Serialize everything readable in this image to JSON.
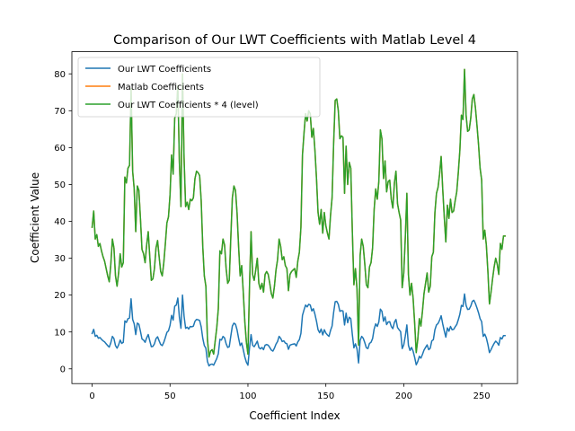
{
  "chart_data": {
    "type": "line",
    "title": "Comparison of Our LWT Coefficients with Matlab Level 4",
    "xlabel": "Coefficient Index",
    "ylabel": "Coefficient Value",
    "xlim": [
      -13,
      273
    ],
    "ylim": [
      -4,
      86
    ],
    "xticks": [
      0,
      50,
      100,
      150,
      200,
      250
    ],
    "yticks": [
      0,
      10,
      20,
      30,
      40,
      50,
      60,
      70,
      80
    ],
    "grid": false,
    "legend_position": "top-left",
    "series": [
      {
        "name": "Our LWT Coefficients",
        "color": "#1f77b4",
        "values": [
          9.6,
          10.7,
          8.8,
          9.1,
          8.3,
          8.5,
          8.0,
          7.6,
          7.3,
          6.8,
          6.3,
          5.9,
          7.1,
          8.8,
          8.2,
          6.3,
          5.6,
          6.5,
          7.8,
          6.9,
          7.2,
          13.0,
          12.6,
          13.6,
          13.8,
          19.0,
          13.4,
          12.2,
          9.3,
          12.4,
          12.1,
          10.2,
          8.1,
          7.8,
          7.2,
          8.4,
          9.3,
          7.6,
          6.0,
          6.1,
          6.8,
          8.2,
          8.7,
          7.6,
          6.6,
          6.3,
          7.2,
          8.5,
          9.9,
          10.3,
          11.8,
          14.5,
          13.2,
          17.0,
          17.3,
          19.2,
          14.0,
          11.0,
          20.0,
          14.3,
          11.0,
          11.3,
          10.8,
          11.5,
          11.4,
          11.6,
          12.9,
          13.4,
          13.3,
          13.1,
          11.4,
          8.3,
          6.3,
          5.6,
          2.0,
          0.8,
          1.2,
          1.3,
          1.0,
          1.9,
          2.8,
          4.1,
          8.0,
          7.8,
          8.8,
          8.4,
          6.8,
          5.8,
          6.0,
          8.9,
          11.6,
          12.4,
          12.1,
          10.6,
          8.3,
          6.3,
          7.0,
          5.2,
          3.2,
          1.8,
          1.0,
          5.6,
          9.3,
          6.4,
          6.0,
          6.7,
          7.5,
          5.8,
          5.4,
          5.8,
          5.2,
          6.4,
          6.6,
          6.4,
          5.8,
          5.1,
          4.8,
          5.6,
          6.7,
          7.4,
          8.8,
          8.3,
          7.4,
          7.6,
          7.0,
          6.8,
          5.3,
          6.4,
          6.6,
          6.7,
          6.8,
          6.2,
          7.3,
          7.9,
          9.6,
          14.5,
          16.0,
          17.3,
          16.8,
          17.5,
          17.3,
          15.7,
          16.3,
          14.8,
          12.9,
          10.6,
          9.8,
          10.8,
          9.2,
          10.6,
          9.7,
          9.2,
          8.8,
          10.4,
          11.6,
          15.3,
          18.2,
          18.3,
          17.5,
          15.6,
          15.8,
          15.7,
          11.9,
          15.1,
          12.5,
          14.0,
          13.6,
          9.3,
          5.7,
          6.8,
          5.4,
          1.6,
          7.7,
          8.8,
          8.3,
          7.1,
          5.7,
          5.5,
          6.9,
          7.2,
          8.2,
          10.8,
          12.2,
          11.5,
          12.7,
          16.2,
          15.6,
          12.9,
          14.1,
          12.0,
          12.7,
          12.8,
          11.5,
          10.9,
          12.6,
          13.4,
          11.2,
          10.6,
          10.1,
          5.5,
          6.5,
          8.9,
          11.9,
          6.4,
          5.0,
          5.8,
          4.8,
          3.1,
          1.1,
          2.0,
          3.4,
          2.9,
          3.9,
          5.1,
          5.8,
          6.5,
          5.2,
          5.6,
          7.6,
          7.9,
          10.6,
          11.9,
          12.3,
          13.2,
          14.4,
          12.2,
          10.3,
          8.6,
          11.1,
          10.2,
          11.5,
          10.6,
          10.7,
          11.4,
          12.0,
          13.3,
          14.8,
          17.2,
          16.9,
          20.3,
          17.2,
          16.1,
          16.2,
          17.0,
          18.3,
          18.6,
          17.7,
          16.5,
          15.2,
          13.6,
          12.8,
          8.8,
          9.4,
          8.4,
          6.6,
          4.4,
          5.2,
          6.1,
          6.9,
          7.5,
          7.1,
          6.4,
          8.5,
          8.1,
          9.0,
          9.0
        ],
        "line_width": 1.5
      },
      {
        "name": "Matlab Coefficients",
        "color": "#ff7f0e",
        "values": [
          38.4,
          42.8,
          35.2,
          36.4,
          33.2,
          34.0,
          32.0,
          30.4,
          29.2,
          27.2,
          25.2,
          23.6,
          28.4,
          35.2,
          32.8,
          25.2,
          22.4,
          26.0,
          31.2,
          27.6,
          28.8,
          52.0,
          50.4,
          54.4,
          55.2,
          76.0,
          53.6,
          48.8,
          37.2,
          49.6,
          48.4,
          40.8,
          32.4,
          31.2,
          28.8,
          33.6,
          37.2,
          30.4,
          24.0,
          24.4,
          27.2,
          32.8,
          34.8,
          30.4,
          26.4,
          25.2,
          28.8,
          34.0,
          39.6,
          41.2,
          47.2,
          58.0,
          52.8,
          68.0,
          69.2,
          76.8,
          56.0,
          44.0,
          80.0,
          57.2,
          44.0,
          45.2,
          43.2,
          46.0,
          45.6,
          46.4,
          51.6,
          53.6,
          53.2,
          52.4,
          45.6,
          33.2,
          25.2,
          22.4,
          8.0,
          3.2,
          4.8,
          5.2,
          4.0,
          7.6,
          11.2,
          16.4,
          32.0,
          31.2,
          35.2,
          33.6,
          27.2,
          23.2,
          24.0,
          35.6,
          46.4,
          49.6,
          48.4,
          42.4,
          33.2,
          25.2,
          28.0,
          20.8,
          12.8,
          7.2,
          4.0,
          22.4,
          37.2,
          25.6,
          24.0,
          26.8,
          30.0,
          23.2,
          21.6,
          23.2,
          20.8,
          25.6,
          26.4,
          25.6,
          23.2,
          20.4,
          19.2,
          22.4,
          26.8,
          29.6,
          35.2,
          33.2,
          29.6,
          30.4,
          28.0,
          27.2,
          21.2,
          25.6,
          26.4,
          26.8,
          27.2,
          24.8,
          29.2,
          31.6,
          38.4,
          58.0,
          64.0,
          69.2,
          67.2,
          70.0,
          69.2,
          62.8,
          65.2,
          59.2,
          51.6,
          42.4,
          39.2,
          43.2,
          36.8,
          42.4,
          38.8,
          36.8,
          35.2,
          41.6,
          46.4,
          61.2,
          72.8,
          73.2,
          70.0,
          62.4,
          63.2,
          62.8,
          47.6,
          60.4,
          50.0,
          56.0,
          54.4,
          37.2,
          22.8,
          27.2,
          21.6,
          6.4,
          30.8,
          35.2,
          33.2,
          28.4,
          22.8,
          22.0,
          27.6,
          28.8,
          32.8,
          43.2,
          48.8,
          46.0,
          50.8,
          64.8,
          62.4,
          51.6,
          56.4,
          48.0,
          50.8,
          51.2,
          46.0,
          43.6,
          50.4,
          53.6,
          44.8,
          42.4,
          40.4,
          22.0,
          26.0,
          35.6,
          47.6,
          25.6,
          20.0,
          23.2,
          19.2,
          12.4,
          4.4,
          8.0,
          13.6,
          11.6,
          15.6,
          20.4,
          23.2,
          26.0,
          20.8,
          22.4,
          30.4,
          31.6,
          42.4,
          47.6,
          49.2,
          52.8,
          57.6,
          48.8,
          41.2,
          34.4,
          44.4,
          40.8,
          46.0,
          42.4,
          42.8,
          45.6,
          48.0,
          53.2,
          59.2,
          68.8,
          67.6,
          81.2,
          68.8,
          64.4,
          64.8,
          68.0,
          73.2,
          74.4,
          70.8,
          66.0,
          60.8,
          54.4,
          51.2,
          35.2,
          37.6,
          33.6,
          26.4,
          17.6,
          20.8,
          24.4,
          27.6,
          30.0,
          28.4,
          25.6,
          34.0,
          32.4,
          36.0,
          36.0
        ],
        "line_width": 1.5
      },
      {
        "name": "Our LWT Coefficients * 4 (level)",
        "color": "#2ca02c",
        "values": [
          38.4,
          42.8,
          35.2,
          36.4,
          33.2,
          34.0,
          32.0,
          30.4,
          29.2,
          27.2,
          25.2,
          23.6,
          28.4,
          35.2,
          32.8,
          25.2,
          22.4,
          26.0,
          31.2,
          27.6,
          28.8,
          52.0,
          50.4,
          54.4,
          55.2,
          76.0,
          53.6,
          48.8,
          37.2,
          49.6,
          48.4,
          40.8,
          32.4,
          31.2,
          28.8,
          33.6,
          37.2,
          30.4,
          24.0,
          24.4,
          27.2,
          32.8,
          34.8,
          30.4,
          26.4,
          25.2,
          28.8,
          34.0,
          39.6,
          41.2,
          47.2,
          58.0,
          52.8,
          68.0,
          69.2,
          76.8,
          56.0,
          44.0,
          80.0,
          57.2,
          44.0,
          45.2,
          43.2,
          46.0,
          45.6,
          46.4,
          51.6,
          53.6,
          53.2,
          52.4,
          45.6,
          33.2,
          25.2,
          22.4,
          8.0,
          3.2,
          4.8,
          5.2,
          4.0,
          7.6,
          11.2,
          16.4,
          32.0,
          31.2,
          35.2,
          33.6,
          27.2,
          23.2,
          24.0,
          35.6,
          46.4,
          49.6,
          48.4,
          42.4,
          33.2,
          25.2,
          28.0,
          20.8,
          12.8,
          7.2,
          4.0,
          22.4,
          37.2,
          25.6,
          24.0,
          26.8,
          30.0,
          23.2,
          21.6,
          23.2,
          20.8,
          25.6,
          26.4,
          25.6,
          23.2,
          20.4,
          19.2,
          22.4,
          26.8,
          29.6,
          35.2,
          33.2,
          29.6,
          30.4,
          28.0,
          27.2,
          21.2,
          25.6,
          26.4,
          26.8,
          27.2,
          24.8,
          29.2,
          31.6,
          38.4,
          58.0,
          64.0,
          69.2,
          67.2,
          70.0,
          69.2,
          62.8,
          65.2,
          59.2,
          51.6,
          42.4,
          39.2,
          43.2,
          36.8,
          42.4,
          38.8,
          36.8,
          35.2,
          41.6,
          46.4,
          61.2,
          72.8,
          73.2,
          70.0,
          62.4,
          63.2,
          62.8,
          47.6,
          60.4,
          50.0,
          56.0,
          54.4,
          37.2,
          22.8,
          27.2,
          21.6,
          6.4,
          30.8,
          35.2,
          33.2,
          28.4,
          22.8,
          22.0,
          27.6,
          28.8,
          32.8,
          43.2,
          48.8,
          46.0,
          50.8,
          64.8,
          62.4,
          51.6,
          56.4,
          48.0,
          50.8,
          51.2,
          46.0,
          43.6,
          50.4,
          53.6,
          44.8,
          42.4,
          40.4,
          22.0,
          26.0,
          35.6,
          47.6,
          25.6,
          20.0,
          23.2,
          19.2,
          12.4,
          4.4,
          8.0,
          13.6,
          11.6,
          15.6,
          20.4,
          23.2,
          26.0,
          20.8,
          22.4,
          30.4,
          31.6,
          42.4,
          47.6,
          49.2,
          52.8,
          57.6,
          48.8,
          41.2,
          34.4,
          44.4,
          40.8,
          46.0,
          42.4,
          42.8,
          45.6,
          48.0,
          53.2,
          59.2,
          68.8,
          67.6,
          81.2,
          68.8,
          64.4,
          64.8,
          68.0,
          73.2,
          74.4,
          70.8,
          66.0,
          60.8,
          54.4,
          51.2,
          35.2,
          37.6,
          33.6,
          26.4,
          17.6,
          20.8,
          24.4,
          27.6,
          30.0,
          28.4,
          25.6,
          34.0,
          32.4,
          36.0,
          36.0
        ],
        "line_width": 1.5
      }
    ]
  }
}
